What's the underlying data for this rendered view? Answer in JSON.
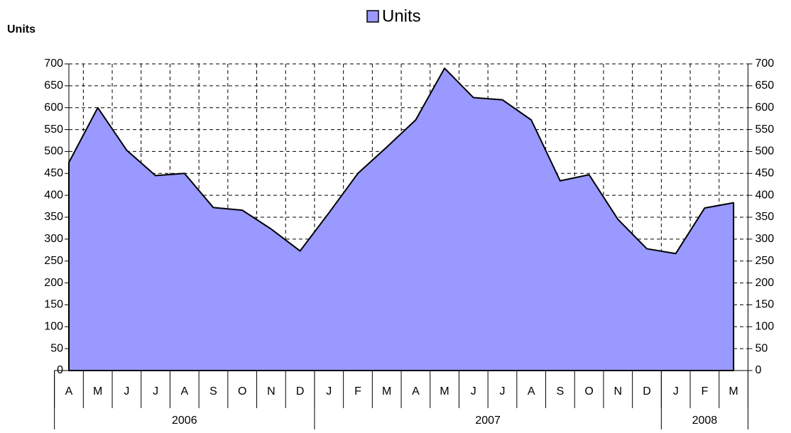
{
  "chart_data": {
    "type": "area",
    "y_label": "Units",
    "categories": [
      "A",
      "M",
      "J",
      "J",
      "A",
      "S",
      "O",
      "N",
      "D",
      "J",
      "F",
      "M",
      "A",
      "M",
      "J",
      "J",
      "A",
      "S",
      "O",
      "N",
      "D",
      "J",
      "F",
      "M"
    ],
    "category_groups": [
      {
        "label": "2006",
        "size": 9
      },
      {
        "label": "2007",
        "size": 12
      },
      {
        "label": "2008",
        "size": 3
      }
    ],
    "series": [
      {
        "name": "Units",
        "color": "#9999ff",
        "values": [
          475,
          600,
          503,
          445,
          450,
          372,
          366,
          323,
          273,
          360,
          450,
          510,
          572,
          690,
          623,
          618,
          572,
          433,
          447,
          345,
          278,
          267,
          371,
          383
        ]
      }
    ],
    "ylim": [
      0,
      700
    ],
    "yticks": [
      0,
      50,
      100,
      150,
      200,
      250,
      300,
      350,
      400,
      450,
      500,
      550,
      600,
      650,
      700
    ],
    "y2lim": [
      0,
      700
    ],
    "y2ticks": [
      0,
      50,
      100,
      150,
      200,
      250,
      300,
      350,
      400,
      450,
      500,
      550,
      600,
      650,
      700
    ],
    "grid": true,
    "legend": "top"
  }
}
